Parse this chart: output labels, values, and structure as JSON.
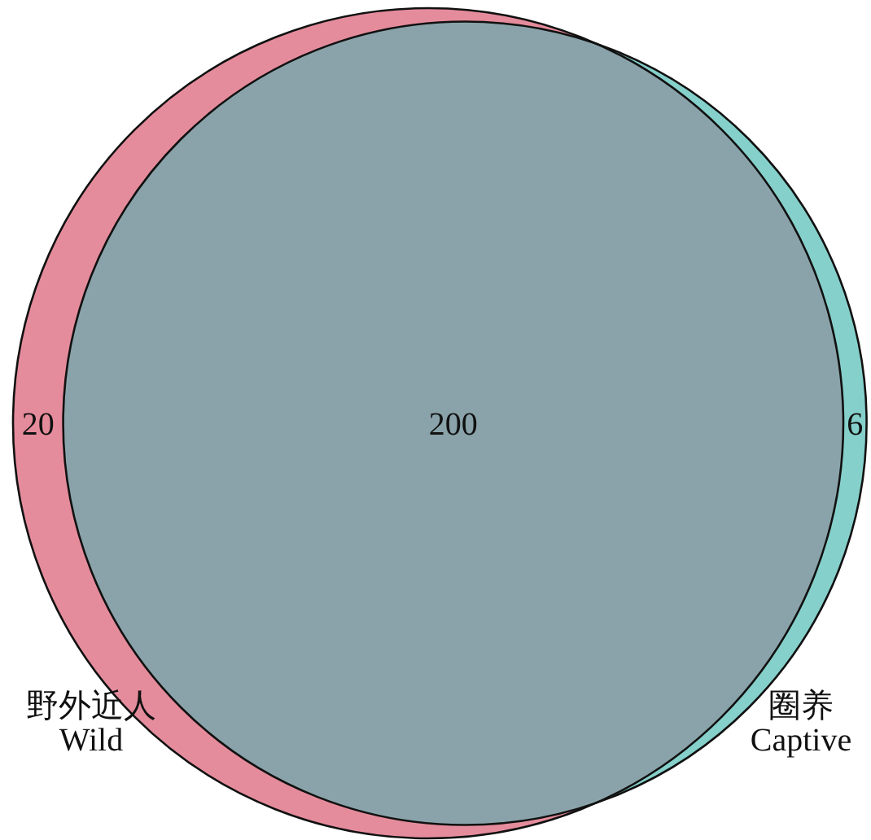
{
  "chart_data": {
    "type": "other",
    "categories": [
      "野外近人\nWild",
      null,
      "圈养\nCaptive"
    ],
    "values": [
      20,
      200,
      6
    ],
    "colors": [
      "#e58c9c",
      "#8aa3aa",
      "#86d0cb"
    ],
    "data_labels": true
  }
}
